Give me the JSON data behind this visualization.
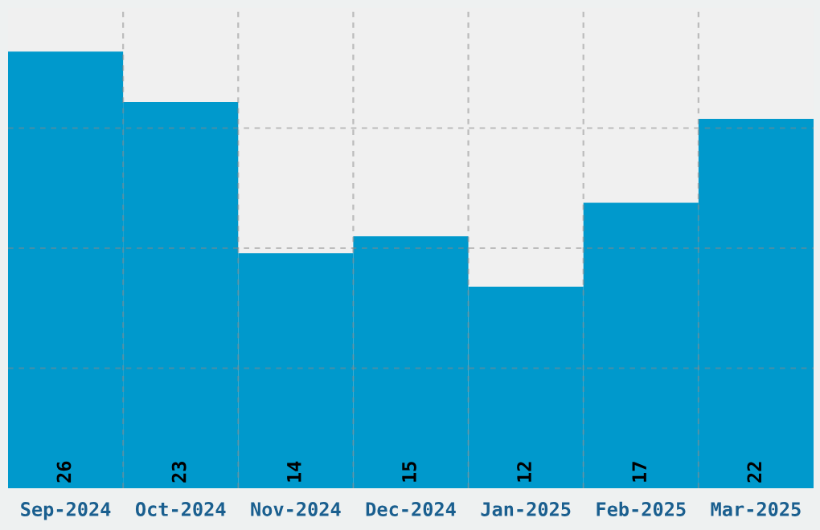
{
  "chart_data": {
    "type": "bar",
    "categories": [
      "Sep-2024",
      "Oct-2024",
      "Nov-2024",
      "Dec-2024",
      "Jan-2025",
      "Feb-2025",
      "Mar-2025"
    ],
    "values": [
      26,
      23,
      14,
      15,
      12,
      17,
      22
    ],
    "color": "#0099cc",
    "ylim": [
      0,
      28.6
    ],
    "yticks": [
      {
        "value": 7.15,
        "label": null
      },
      {
        "value": 14.3,
        "label": null
      },
      {
        "value": 21.45,
        "label": null
      }
    ],
    "tick_labels": "x",
    "grid": true,
    "data_labels": true
  }
}
